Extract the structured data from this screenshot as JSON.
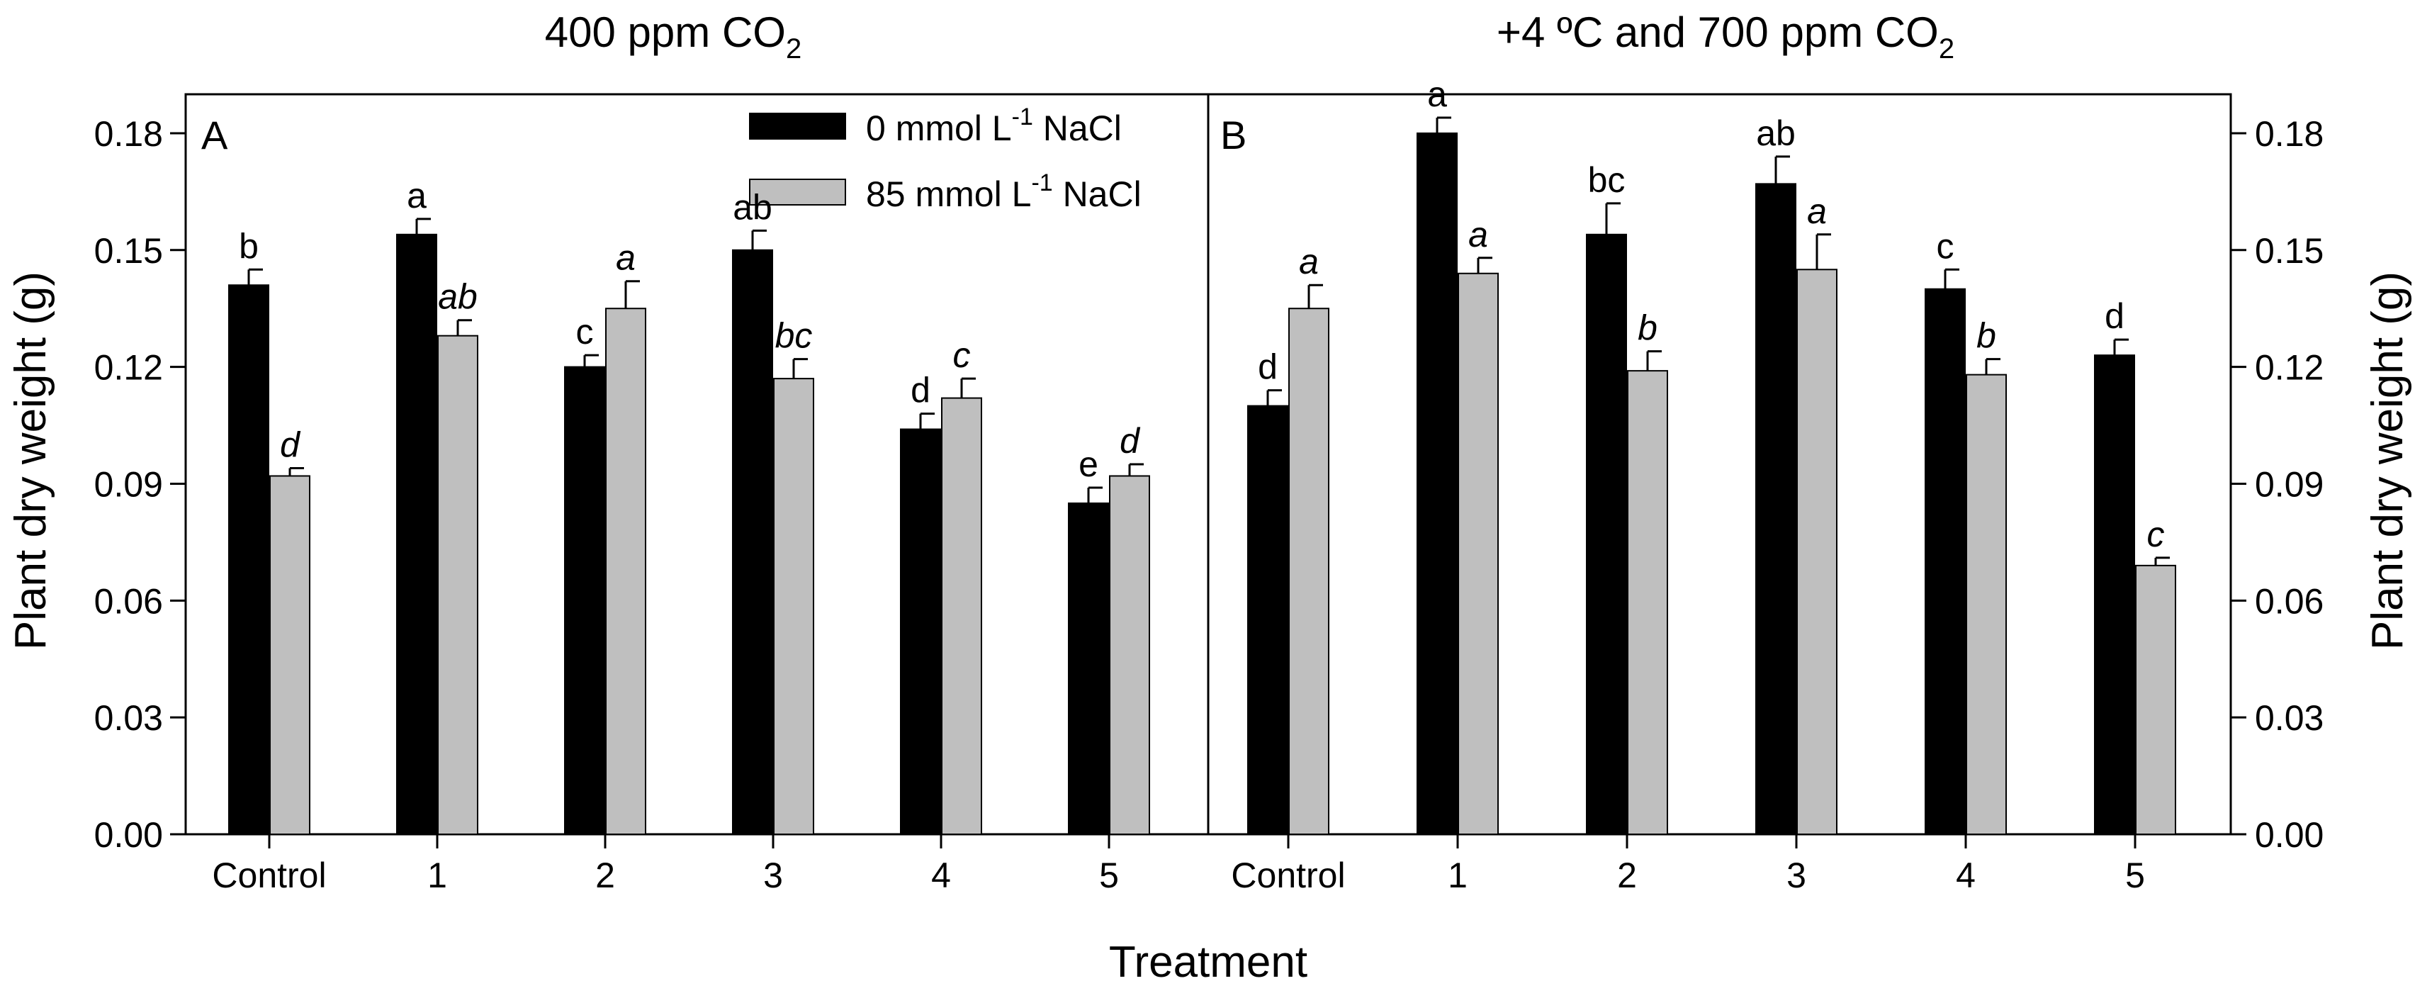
{
  "colors": {
    "control": "#000000",
    "salt": "#bfbfbf",
    "axis": "#000000"
  },
  "titles": {
    "left": {
      "main": "400 ppm CO",
      "sub": "2"
    },
    "right": {
      "main": "+4 ºC and 700 ppm CO",
      "sub": "2"
    }
  },
  "legend": {
    "items": [
      {
        "pre": "0 mmol L",
        "sup": "-1",
        "post": " NaCl",
        "color": "#000000"
      },
      {
        "pre": "85 mmol L",
        "sup": "-1",
        "post": " NaCl",
        "color": "#bfbfbf"
      }
    ]
  },
  "x_axis_label": "Treatment",
  "y_axis_label": "Plant dry weight (g)",
  "chart_data": [
    {
      "type": "bar",
      "panel_label": "A",
      "title": "400 ppm CO2",
      "xlabel": "Treatment",
      "ylabel": "Plant dry weight (g)",
      "ylim": [
        0,
        0.19
      ],
      "yticks": [
        "0.00",
        "0.03",
        "0.06",
        "0.09",
        "0.12",
        "0.15",
        "0.18"
      ],
      "y_axis_side": "left",
      "categories": [
        "Control",
        "1",
        "2",
        "3",
        "4",
        "5"
      ],
      "series": [
        {
          "name": "0 mmol L-1 NaCl",
          "color": "#000000",
          "values": [
            0.141,
            0.154,
            0.12,
            0.15,
            0.104,
            0.085
          ],
          "errors": [
            0.004,
            0.004,
            0.003,
            0.005,
            0.004,
            0.004
          ],
          "letters": [
            "b",
            "a",
            "c",
            "ab",
            "d",
            "e"
          ],
          "italic": false
        },
        {
          "name": "85 mmol L-1 NaCl",
          "color": "#bfbfbf",
          "values": [
            0.092,
            0.128,
            0.135,
            0.117,
            0.112,
            0.092
          ],
          "errors": [
            0.002,
            0.004,
            0.007,
            0.005,
            0.005,
            0.003
          ],
          "letters": [
            "d",
            "ab",
            "a",
            "bc",
            "c",
            "d"
          ],
          "italic": true
        }
      ]
    },
    {
      "type": "bar",
      "panel_label": "B",
      "title": "+4 ºC and 700 ppm CO2",
      "xlabel": "Treatment",
      "ylabel": "Plant dry weight (g)",
      "ylim": [
        0,
        0.19
      ],
      "yticks": [
        "0.00",
        "0.03",
        "0.06",
        "0.09",
        "0.12",
        "0.15",
        "0.18"
      ],
      "y_axis_side": "right",
      "categories": [
        "Control",
        "1",
        "2",
        "3",
        "4",
        "5"
      ],
      "series": [
        {
          "name": "0 mmol L-1 NaCl",
          "color": "#000000",
          "values": [
            0.11,
            0.18,
            0.154,
            0.167,
            0.14,
            0.123
          ],
          "errors": [
            0.004,
            0.004,
            0.008,
            0.007,
            0.005,
            0.004
          ],
          "letters": [
            "d",
            "a",
            "bc",
            "ab",
            "c",
            "d"
          ],
          "italic": false
        },
        {
          "name": "85 mmol L-1 NaCl",
          "color": "#bfbfbf",
          "values": [
            0.135,
            0.144,
            0.119,
            0.145,
            0.118,
            0.069
          ],
          "errors": [
            0.006,
            0.004,
            0.005,
            0.009,
            0.004,
            0.002
          ],
          "letters": [
            "a",
            "a",
            "b",
            "a",
            "b",
            "c"
          ],
          "italic": true
        }
      ]
    }
  ]
}
